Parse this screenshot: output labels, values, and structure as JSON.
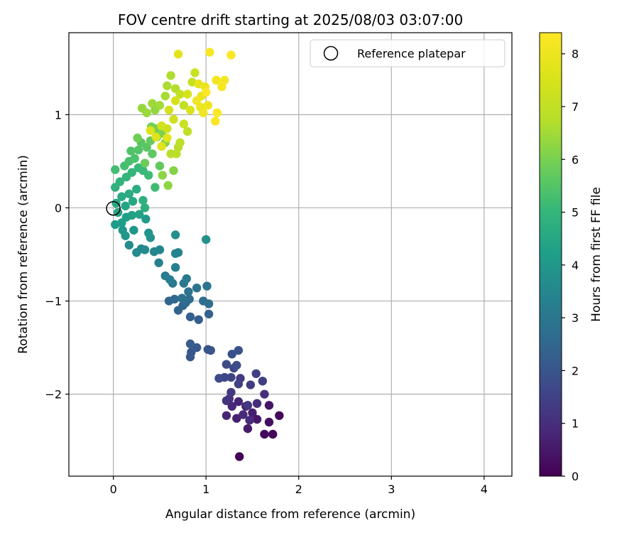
{
  "chart_data": {
    "type": "scatter",
    "title": "FOV centre drift starting at 2025/08/03 03:07:00",
    "xlabel": "Angular distance from reference (arcmin)",
    "ylabel": "Rotation from reference (arcmin)",
    "xlim": [
      -0.48,
      4.3
    ],
    "ylim": [
      -2.88,
      1.88
    ],
    "xticks": [
      0,
      1,
      2,
      3,
      4
    ],
    "yticks": [
      -2,
      -1,
      0,
      1
    ],
    "grid": true,
    "legend": {
      "placement": "top-right",
      "entries": [
        "Reference platepar"
      ]
    },
    "reference_point": {
      "x": 0.0,
      "y": 0.0,
      "label": "Reference platepar"
    },
    "colorbar": {
      "label": "Hours from first FF file",
      "min": 0,
      "max": 8.4,
      "ticks": [
        0,
        1,
        2,
        3,
        4,
        5,
        6,
        7,
        8
      ],
      "colormap": "viridis"
    },
    "points": [
      {
        "x": 1.36,
        "y": -2.67,
        "t": 0.05
      },
      {
        "x": 1.72,
        "y": -2.43,
        "t": 0.1
      },
      {
        "x": 1.63,
        "y": -2.43,
        "t": 0.2
      },
      {
        "x": 1.79,
        "y": -2.23,
        "t": 0.15
      },
      {
        "x": 1.68,
        "y": -2.3,
        "t": 0.3
      },
      {
        "x": 1.68,
        "y": -2.12,
        "t": 0.4
      },
      {
        "x": 1.55,
        "y": -2.27,
        "t": 0.5
      },
      {
        "x": 1.45,
        "y": -2.37,
        "t": 0.55
      },
      {
        "x": 1.5,
        "y": -2.2,
        "t": 0.6
      },
      {
        "x": 1.43,
        "y": -2.13,
        "t": 0.65
      },
      {
        "x": 1.33,
        "y": -2.26,
        "t": 0.7
      },
      {
        "x": 1.35,
        "y": -2.08,
        "t": 0.75
      },
      {
        "x": 1.22,
        "y": -2.23,
        "t": 0.8
      },
      {
        "x": 1.28,
        "y": -2.13,
        "t": 0.85
      },
      {
        "x": 1.4,
        "y": -2.22,
        "t": 0.9
      },
      {
        "x": 1.47,
        "y": -2.28,
        "t": 0.95
      },
      {
        "x": 1.55,
        "y": -2.1,
        "t": 1.0
      },
      {
        "x": 1.63,
        "y": -2.0,
        "t": 1.05
      },
      {
        "x": 1.25,
        "y": -2.05,
        "t": 1.1
      },
      {
        "x": 1.22,
        "y": -2.07,
        "t": 1.15
      },
      {
        "x": 1.45,
        "y": -2.12,
        "t": 1.2
      },
      {
        "x": 1.27,
        "y": -1.98,
        "t": 1.25
      },
      {
        "x": 1.37,
        "y": -1.83,
        "t": 1.3
      },
      {
        "x": 1.48,
        "y": -1.9,
        "t": 1.35
      },
      {
        "x": 1.61,
        "y": -1.86,
        "t": 1.4
      },
      {
        "x": 1.54,
        "y": -1.78,
        "t": 1.45
      },
      {
        "x": 1.35,
        "y": -1.89,
        "t": 1.5
      },
      {
        "x": 1.27,
        "y": -1.82,
        "t": 1.55
      },
      {
        "x": 1.3,
        "y": -1.72,
        "t": 1.6
      },
      {
        "x": 1.2,
        "y": -1.82,
        "t": 1.65
      },
      {
        "x": 1.14,
        "y": -1.83,
        "t": 1.7
      },
      {
        "x": 1.22,
        "y": -1.68,
        "t": 1.75
      },
      {
        "x": 1.33,
        "y": -1.69,
        "t": 1.8
      },
      {
        "x": 1.28,
        "y": -1.57,
        "t": 1.85
      },
      {
        "x": 1.35,
        "y": -1.53,
        "t": 1.9
      },
      {
        "x": 1.02,
        "y": -1.52,
        "t": 1.95
      },
      {
        "x": 1.05,
        "y": -1.53,
        "t": 2.0
      },
      {
        "x": 0.84,
        "y": -1.55,
        "t": 2.05
      },
      {
        "x": 0.83,
        "y": -1.6,
        "t": 2.1
      },
      {
        "x": 0.9,
        "y": -1.5,
        "t": 2.15
      },
      {
        "x": 0.83,
        "y": -1.46,
        "t": 2.2
      },
      {
        "x": 0.92,
        "y": -1.2,
        "t": 2.25
      },
      {
        "x": 0.83,
        "y": -1.17,
        "t": 2.3
      },
      {
        "x": 1.03,
        "y": -1.14,
        "t": 2.35
      },
      {
        "x": 0.7,
        "y": -1.1,
        "t": 2.4
      },
      {
        "x": 0.75,
        "y": -1.05,
        "t": 2.45
      },
      {
        "x": 0.6,
        "y": -1.0,
        "t": 2.5
      },
      {
        "x": 0.66,
        "y": -0.98,
        "t": 2.55
      },
      {
        "x": 0.78,
        "y": -1.02,
        "t": 2.6
      },
      {
        "x": 0.82,
        "y": -0.98,
        "t": 2.65
      },
      {
        "x": 0.97,
        "y": -1.0,
        "t": 2.7
      },
      {
        "x": 1.03,
        "y": -1.03,
        "t": 2.75
      },
      {
        "x": 0.74,
        "y": -0.97,
        "t": 2.8
      },
      {
        "x": 0.81,
        "y": -0.9,
        "t": 2.85
      },
      {
        "x": 0.9,
        "y": -0.86,
        "t": 2.9
      },
      {
        "x": 1.01,
        "y": -0.84,
        "t": 2.95
      },
      {
        "x": 0.64,
        "y": -0.81,
        "t": 3.0
      },
      {
        "x": 0.76,
        "y": -0.81,
        "t": 3.05
      },
      {
        "x": 0.79,
        "y": -0.76,
        "t": 3.1
      },
      {
        "x": 0.56,
        "y": -0.73,
        "t": 3.15
      },
      {
        "x": 0.61,
        "y": -0.77,
        "t": 3.2
      },
      {
        "x": 0.67,
        "y": -0.64,
        "t": 3.25
      },
      {
        "x": 0.49,
        "y": -0.59,
        "t": 3.3
      },
      {
        "x": 0.7,
        "y": -0.48,
        "t": 3.35
      },
      {
        "x": 0.67,
        "y": -0.49,
        "t": 3.4
      },
      {
        "x": 0.5,
        "y": -0.45,
        "t": 3.45
      },
      {
        "x": 0.44,
        "y": -0.47,
        "t": 3.5
      },
      {
        "x": 0.3,
        "y": -0.44,
        "t": 3.55
      },
      {
        "x": 0.34,
        "y": -0.45,
        "t": 3.6
      },
      {
        "x": 0.25,
        "y": -0.48,
        "t": 3.65
      },
      {
        "x": 0.17,
        "y": -0.4,
        "t": 3.7
      },
      {
        "x": 0.67,
        "y": -0.29,
        "t": 3.75
      },
      {
        "x": 1.0,
        "y": -0.34,
        "t": 3.8
      },
      {
        "x": 0.4,
        "y": -0.32,
        "t": 3.85
      },
      {
        "x": 0.38,
        "y": -0.27,
        "t": 3.9
      },
      {
        "x": 0.13,
        "y": -0.3,
        "t": 3.95
      },
      {
        "x": 0.22,
        "y": -0.24,
        "t": 4.0
      },
      {
        "x": 0.1,
        "y": -0.24,
        "t": 4.05
      },
      {
        "x": 0.35,
        "y": -0.12,
        "t": 4.1
      },
      {
        "x": 0.02,
        "y": -0.18,
        "t": 4.15
      },
      {
        "x": 0.09,
        "y": -0.16,
        "t": 4.2
      },
      {
        "x": 0.14,
        "y": -0.1,
        "t": 4.25
      },
      {
        "x": 0.2,
        "y": -0.08,
        "t": 4.3
      },
      {
        "x": 0.28,
        "y": -0.07,
        "t": 4.35
      },
      {
        "x": 0.05,
        "y": -0.05,
        "t": 4.4
      },
      {
        "x": 0.13,
        "y": 0.02,
        "t": 4.45
      },
      {
        "x": 0.21,
        "y": 0.07,
        "t": 4.5
      },
      {
        "x": 0.03,
        "y": 0.05,
        "t": 4.55
      },
      {
        "x": 0.09,
        "y": 0.12,
        "t": 4.6
      },
      {
        "x": 0.17,
        "y": 0.15,
        "t": 4.65
      },
      {
        "x": 0.25,
        "y": 0.2,
        "t": 4.7
      },
      {
        "x": 0.34,
        "y": 0.0,
        "t": 4.75
      },
      {
        "x": 0.32,
        "y": 0.08,
        "t": 4.8
      },
      {
        "x": 0.02,
        "y": 0.22,
        "t": 4.85
      },
      {
        "x": 0.07,
        "y": 0.28,
        "t": 4.9
      },
      {
        "x": 0.14,
        "y": 0.33,
        "t": 4.95
      },
      {
        "x": 0.2,
        "y": 0.38,
        "t": 5.0
      },
      {
        "x": 0.27,
        "y": 0.43,
        "t": 5.05
      },
      {
        "x": 0.32,
        "y": 0.4,
        "t": 5.1
      },
      {
        "x": 0.38,
        "y": 0.35,
        "t": 5.15
      },
      {
        "x": 0.45,
        "y": 0.22,
        "t": 5.2
      },
      {
        "x": 0.02,
        "y": 0.41,
        "t": 5.25
      },
      {
        "x": 0.12,
        "y": 0.45,
        "t": 5.3
      },
      {
        "x": 0.17,
        "y": 0.5,
        "t": 5.35
      },
      {
        "x": 0.23,
        "y": 0.53,
        "t": 5.4
      },
      {
        "x": 0.19,
        "y": 0.61,
        "t": 5.45
      },
      {
        "x": 0.27,
        "y": 0.62,
        "t": 5.5
      },
      {
        "x": 0.3,
        "y": 0.7,
        "t": 5.55
      },
      {
        "x": 0.36,
        "y": 0.65,
        "t": 5.6
      },
      {
        "x": 0.42,
        "y": 0.58,
        "t": 5.65
      },
      {
        "x": 0.5,
        "y": 0.45,
        "t": 5.7
      },
      {
        "x": 0.4,
        "y": 0.72,
        "t": 5.75
      },
      {
        "x": 0.47,
        "y": 0.76,
        "t": 5.8
      },
      {
        "x": 0.34,
        "y": 0.48,
        "t": 5.85
      },
      {
        "x": 0.26,
        "y": 0.75,
        "t": 5.9
      },
      {
        "x": 0.41,
        "y": 0.87,
        "t": 5.95
      },
      {
        "x": 0.46,
        "y": 0.85,
        "t": 6.0
      },
      {
        "x": 0.52,
        "y": 0.8,
        "t": 6.05
      },
      {
        "x": 0.56,
        "y": 0.7,
        "t": 6.1
      },
      {
        "x": 0.65,
        "y": 0.4,
        "t": 6.15
      },
      {
        "x": 0.53,
        "y": 0.35,
        "t": 6.2
      },
      {
        "x": 0.59,
        "y": 0.24,
        "t": 6.25
      },
      {
        "x": 0.45,
        "y": 1.05,
        "t": 6.3
      },
      {
        "x": 0.31,
        "y": 1.07,
        "t": 6.35
      },
      {
        "x": 0.36,
        "y": 1.02,
        "t": 6.4
      },
      {
        "x": 0.42,
        "y": 1.12,
        "t": 6.45
      },
      {
        "x": 0.5,
        "y": 1.1,
        "t": 6.5
      },
      {
        "x": 0.56,
        "y": 1.2,
        "t": 6.55
      },
      {
        "x": 0.58,
        "y": 1.31,
        "t": 6.6
      },
      {
        "x": 0.62,
        "y": 1.42,
        "t": 6.65
      },
      {
        "x": 0.67,
        "y": 1.28,
        "t": 6.7
      },
      {
        "x": 0.7,
        "y": 0.65,
        "t": 6.75
      },
      {
        "x": 0.62,
        "y": 0.58,
        "t": 6.8
      },
      {
        "x": 0.68,
        "y": 0.58,
        "t": 6.85
      },
      {
        "x": 0.72,
        "y": 0.7,
        "t": 6.9
      },
      {
        "x": 0.76,
        "y": 1.1,
        "t": 6.95
      },
      {
        "x": 0.8,
        "y": 0.82,
        "t": 7.0
      },
      {
        "x": 0.72,
        "y": 1.22,
        "t": 7.05
      },
      {
        "x": 0.85,
        "y": 1.35,
        "t": 7.1
      },
      {
        "x": 0.88,
        "y": 1.45,
        "t": 7.15
      },
      {
        "x": 0.76,
        "y": 0.9,
        "t": 7.2
      },
      {
        "x": 0.58,
        "y": 0.85,
        "t": 7.25
      },
      {
        "x": 0.65,
        "y": 0.95,
        "t": 7.3
      },
      {
        "x": 0.52,
        "y": 0.88,
        "t": 7.35
      },
      {
        "x": 0.6,
        "y": 1.05,
        "t": 7.4
      },
      {
        "x": 0.67,
        "y": 1.15,
        "t": 7.45
      },
      {
        "x": 0.8,
        "y": 1.22,
        "t": 7.5
      },
      {
        "x": 0.83,
        "y": 1.05,
        "t": 7.55
      },
      {
        "x": 0.4,
        "y": 0.83,
        "t": 7.6
      },
      {
        "x": 0.46,
        "y": 0.76,
        "t": 7.65
      },
      {
        "x": 0.52,
        "y": 0.66,
        "t": 7.7
      },
      {
        "x": 0.58,
        "y": 0.75,
        "t": 7.75
      },
      {
        "x": 0.7,
        "y": 1.65,
        "t": 7.8
      },
      {
        "x": 0.92,
        "y": 1.33,
        "t": 7.85
      },
      {
        "x": 0.95,
        "y": 1.2,
        "t": 7.9
      },
      {
        "x": 0.99,
        "y": 1.3,
        "t": 7.95
      },
      {
        "x": 0.94,
        "y": 1.08,
        "t": 8.0
      },
      {
        "x": 1.02,
        "y": 1.1,
        "t": 8.05
      },
      {
        "x": 0.97,
        "y": 1.02,
        "t": 8.1
      },
      {
        "x": 0.9,
        "y": 1.15,
        "t": 8.1
      },
      {
        "x": 1.11,
        "y": 1.37,
        "t": 8.15
      },
      {
        "x": 1.17,
        "y": 1.3,
        "t": 8.2
      },
      {
        "x": 1.2,
        "y": 1.37,
        "t": 8.2
      },
      {
        "x": 1.04,
        "y": 1.67,
        "t": 8.25
      },
      {
        "x": 1.27,
        "y": 1.64,
        "t": 8.3
      },
      {
        "x": 1.1,
        "y": 0.93,
        "t": 8.3
      },
      {
        "x": 1.12,
        "y": 1.02,
        "t": 8.35
      },
      {
        "x": 1.0,
        "y": 1.24,
        "t": 8.38
      }
    ]
  }
}
